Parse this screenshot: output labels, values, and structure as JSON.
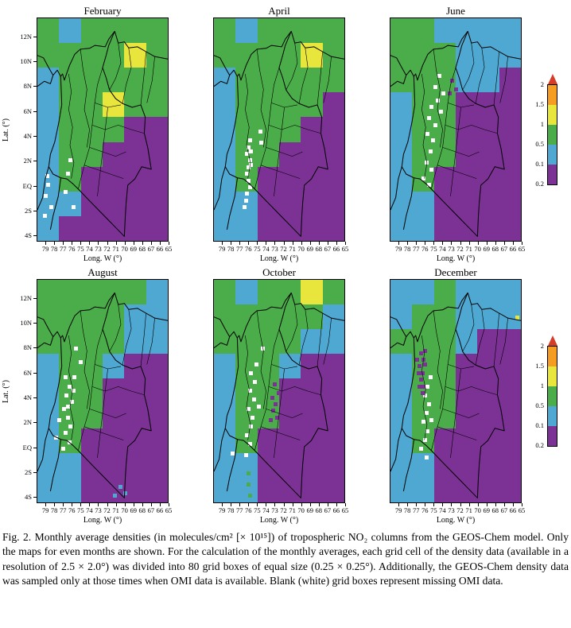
{
  "chart_data": {
    "type": "heatmap",
    "title": "Monthly average tropospheric NO₂ densities from the GEOS-Chem model",
    "units": "molecules/cm² [× 10¹⁵]",
    "palette": {
      "P": "#7b3294",
      "B": "#4fa8d2",
      "G": "#4bad49",
      "Y": "#e8e53d",
      "O": "#f59d22",
      "R": "#d43d2a",
      "W": "#ffffff"
    },
    "axes": {
      "lat_title": "Lat. (°)",
      "lon_title": "Long. W (°)",
      "lat_ticks": [
        "12N",
        "10N",
        "8N",
        "6N",
        "4N",
        "2N",
        "EQ",
        "2S",
        "4S"
      ],
      "lon_ticks": [
        "79",
        "78",
        "77",
        "76",
        "75",
        "74",
        "73",
        "72",
        "71",
        "70",
        "69",
        "68",
        "67",
        "66",
        "65"
      ],
      "lat_range_deg": [
        13.5,
        -4.5
      ],
      "lon_range_deg": [
        80,
        65
      ],
      "grid_cell_size": "2.5 x 2.0 deg"
    },
    "colorbar": {
      "labels": [
        "2",
        "1.5",
        "1",
        "0.5",
        "0.1",
        "0.2"
      ],
      "segments": [
        "O",
        "Y",
        "G",
        "B",
        "P"
      ],
      "arrow": "R"
    },
    "panels": [
      {
        "title": "February",
        "grid": [
          "GBGGGG",
          "GGGGYG",
          "BGGGGG",
          "BGGYGG",
          "BGGGPP",
          "BGGPPP",
          "BGPPPP",
          "BBPPPP",
          "BPPPPP"
        ],
        "specks": [
          [
            "W",
            7,
            74
          ],
          [
            "W",
            5,
            79
          ],
          [
            "W",
            9,
            84
          ],
          [
            "W",
            24,
            63
          ],
          [
            "W",
            22,
            69
          ],
          [
            "W",
            20,
            77
          ],
          [
            "W",
            26,
            84
          ],
          [
            "W",
            4,
            88
          ],
          [
            "W",
            6,
            70
          ]
        ]
      },
      {
        "title": "April",
        "grid": [
          "GBGGGG",
          "GGGGYG",
          "BGGGGG",
          "BGGGGP",
          "BGGGPP",
          "BGGPPP",
          "BGPPPP",
          "BBPPPP",
          "BBPPPP"
        ],
        "specks": [
          [
            "W",
            26,
            54
          ],
          [
            "W",
            25,
            57
          ],
          [
            "W",
            24,
            60
          ],
          [
            "W",
            26,
            63
          ],
          [
            "W",
            25,
            66
          ],
          [
            "W",
            24,
            69
          ],
          [
            "W",
            25,
            72
          ],
          [
            "W",
            26,
            75
          ],
          [
            "W",
            24,
            78
          ],
          [
            "W",
            23,
            81
          ],
          [
            "W",
            27,
            59
          ],
          [
            "W",
            27,
            65
          ],
          [
            "W",
            22,
            84
          ],
          [
            "W",
            34,
            50
          ],
          [
            "W",
            35,
            55
          ]
        ]
      },
      {
        "title": "June",
        "grid": [
          "GGBBBB",
          "GGGBBB",
          "GGGBBP",
          "BGGPPP",
          "BGGPPP",
          "BGGPPP",
          "BGPPPP",
          "BBPPPP",
          "BBPPPP"
        ],
        "specks": [
          [
            "W",
            30,
            39
          ],
          [
            "W",
            28,
            44
          ],
          [
            "W",
            33,
            47
          ],
          [
            "W",
            27,
            51
          ],
          [
            "W",
            31,
            54
          ],
          [
            "W",
            29,
            59
          ],
          [
            "W",
            26,
            64
          ],
          [
            "W",
            30,
            67
          ],
          [
            "W",
            24,
            71
          ],
          [
            "W",
            28,
            74
          ],
          [
            "W",
            35,
            36
          ],
          [
            "W",
            37,
            41
          ],
          [
            "W",
            33,
            30
          ],
          [
            "W",
            36,
            25
          ],
          [
            "W",
            39,
            33
          ],
          [
            "P",
            46,
            27
          ],
          [
            "P",
            49,
            31
          ],
          [
            "P",
            44,
            33
          ]
        ]
      },
      {
        "title": "August",
        "grid": [
          "GGGGGB",
          "GGGGBB",
          "GGGGBB",
          "BGGBPP",
          "BGGPPP",
          "BGGPPP",
          "BGPPPP",
          "BBPPPP",
          "BBPPPP"
        ],
        "specks": [
          [
            "W",
            20,
            43
          ],
          [
            "W",
            23,
            47
          ],
          [
            "W",
            21,
            51
          ],
          [
            "W",
            25,
            54
          ],
          [
            "W",
            19,
            57
          ],
          [
            "W",
            22,
            61
          ],
          [
            "W",
            24,
            65
          ],
          [
            "W",
            20,
            68
          ],
          [
            "W",
            23,
            72
          ],
          [
            "W",
            18,
            75
          ],
          [
            "W",
            26,
            49
          ],
          [
            "W",
            27,
            43
          ],
          [
            "W",
            28,
            30
          ],
          [
            "W",
            32,
            36
          ],
          [
            "W",
            15,
            62
          ],
          [
            "W",
            13,
            70
          ],
          [
            "W",
            22,
            56
          ],
          [
            "B",
            62,
            92
          ],
          [
            "B",
            66,
            95
          ],
          [
            "B",
            58,
            96
          ]
        ]
      },
      {
        "title": "October",
        "grid": [
          "GBGGYG",
          "GGGGGB",
          "GGGGBB",
          "BGGBPP",
          "BGGPPP",
          "BGGPPP",
          "BGPPPP",
          "BBPPPP",
          "BBPPPP"
        ],
        "specks": [
          [
            "W",
            27,
            41
          ],
          [
            "W",
            30,
            45
          ],
          [
            "W",
            26,
            49
          ],
          [
            "W",
            29,
            53
          ],
          [
            "W",
            25,
            57
          ],
          [
            "W",
            28,
            61
          ],
          [
            "W",
            27,
            65
          ],
          [
            "W",
            24,
            69
          ],
          [
            "W",
            31,
            37
          ],
          [
            "W",
            33,
            56
          ],
          [
            "W",
            26,
            73
          ],
          [
            "W",
            23,
            78
          ],
          [
            "W",
            36,
            30
          ],
          [
            "W",
            13,
            77
          ],
          [
            "P",
            45,
            46
          ],
          [
            "P",
            48,
            50
          ],
          [
            "P",
            43,
            52
          ],
          [
            "P",
            46,
            55
          ],
          [
            "P",
            44,
            58
          ],
          [
            "P",
            47,
            61
          ],
          [
            "P",
            50,
            48
          ],
          [
            "P",
            42,
            62
          ],
          [
            "G",
            25,
            86
          ],
          [
            "G",
            25,
            91
          ],
          [
            "G",
            26,
            96
          ]
        ]
      },
      {
        "title": "December",
        "grid": [
          "BBGBBB",
          "BGGBBB",
          "GGGBPP",
          "BGGPPP",
          "BGGPPP",
          "BGGPPP",
          "BGPPPP",
          "BBPPPP",
          "BBPPPP"
        ],
        "specks": [
          [
            "W",
            27,
            47
          ],
          [
            "W",
            25,
            51
          ],
          [
            "W",
            28,
            55
          ],
          [
            "W",
            26,
            59
          ],
          [
            "W",
            24,
            63
          ],
          [
            "W",
            27,
            67
          ],
          [
            "W",
            25,
            71
          ],
          [
            "W",
            29,
            43
          ],
          [
            "W",
            22,
            75
          ],
          [
            "W",
            26,
            79
          ],
          [
            "W",
            30,
            62
          ],
          [
            "P",
            22,
            32
          ],
          [
            "P",
            24,
            35
          ],
          [
            "P",
            21,
            38
          ],
          [
            "P",
            23,
            41
          ],
          [
            "P",
            25,
            37
          ],
          [
            "P",
            22,
            44
          ],
          [
            "P",
            24,
            47
          ],
          [
            "P",
            20,
            41
          ],
          [
            "P",
            23,
            50
          ],
          [
            "P",
            21,
            47
          ],
          [
            "P",
            25,
            31
          ],
          [
            "P",
            19,
            35
          ],
          [
            "Y",
            96,
            16
          ]
        ]
      }
    ]
  },
  "caption": {
    "text": "Fig. 2. Monthly average densities (in molecules/cm² [× 10¹⁵]) of tropospheric NO₂ columns from the GEOS-Chem model. Only the maps for even months are shown. For the calculation of the monthly averages, each grid cell of the density data (available in a resolution of 2.5 × 2.0°) was divided into 80 grid boxes of equal size (0.25 × 0.25°). Additionally, the GEOS-Chem density data was sampled only at those times when OMI data is available. Blank (white) grid boxes represent missing OMI data."
  }
}
